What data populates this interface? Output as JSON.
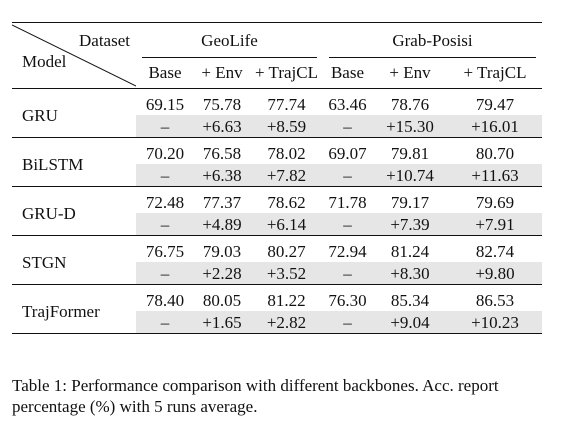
{
  "table": {
    "corner": {
      "dataset_label": "Dataset",
      "model_label": "Model"
    },
    "groups": [
      "GeoLife",
      "Grab-Posisi"
    ],
    "subheaders": [
      "Base",
      "+ Env",
      "+ TrajCL",
      "Base",
      "+ Env",
      "+ TrajCL"
    ],
    "rows": [
      {
        "model": "GRU",
        "values": [
          "69.15",
          "75.78",
          "77.74",
          "63.46",
          "78.76",
          "79.47"
        ],
        "deltas": [
          "–",
          "+6.63",
          "+8.59",
          "–",
          "+15.30",
          "+16.01"
        ]
      },
      {
        "model": "BiLSTM",
        "values": [
          "70.20",
          "76.58",
          "78.02",
          "69.07",
          "79.81",
          "80.70"
        ],
        "deltas": [
          "–",
          "+6.38",
          "+7.82",
          "–",
          "+10.74",
          "+11.63"
        ]
      },
      {
        "model": "GRU-D",
        "values": [
          "72.48",
          "77.37",
          "78.62",
          "71.78",
          "79.17",
          "79.69"
        ],
        "deltas": [
          "–",
          "+4.89",
          "+6.14",
          "–",
          "+7.39",
          "+7.91"
        ]
      },
      {
        "model": "STGN",
        "values": [
          "76.75",
          "79.03",
          "80.27",
          "72.94",
          "81.24",
          "82.74"
        ],
        "deltas": [
          "–",
          "+2.28",
          "+3.52",
          "–",
          "+8.30",
          "+9.80"
        ]
      },
      {
        "model": "TrajFormer",
        "values": [
          "78.40",
          "80.05",
          "81.22",
          "76.30",
          "85.34",
          "86.53"
        ],
        "deltas": [
          "–",
          "+1.65",
          "+2.82",
          "–",
          "+9.04",
          "+10.23"
        ]
      }
    ]
  },
  "caption": "Table 1: Performance comparison with different backbones. Acc. report percentage (%) with 5 runs average."
}
